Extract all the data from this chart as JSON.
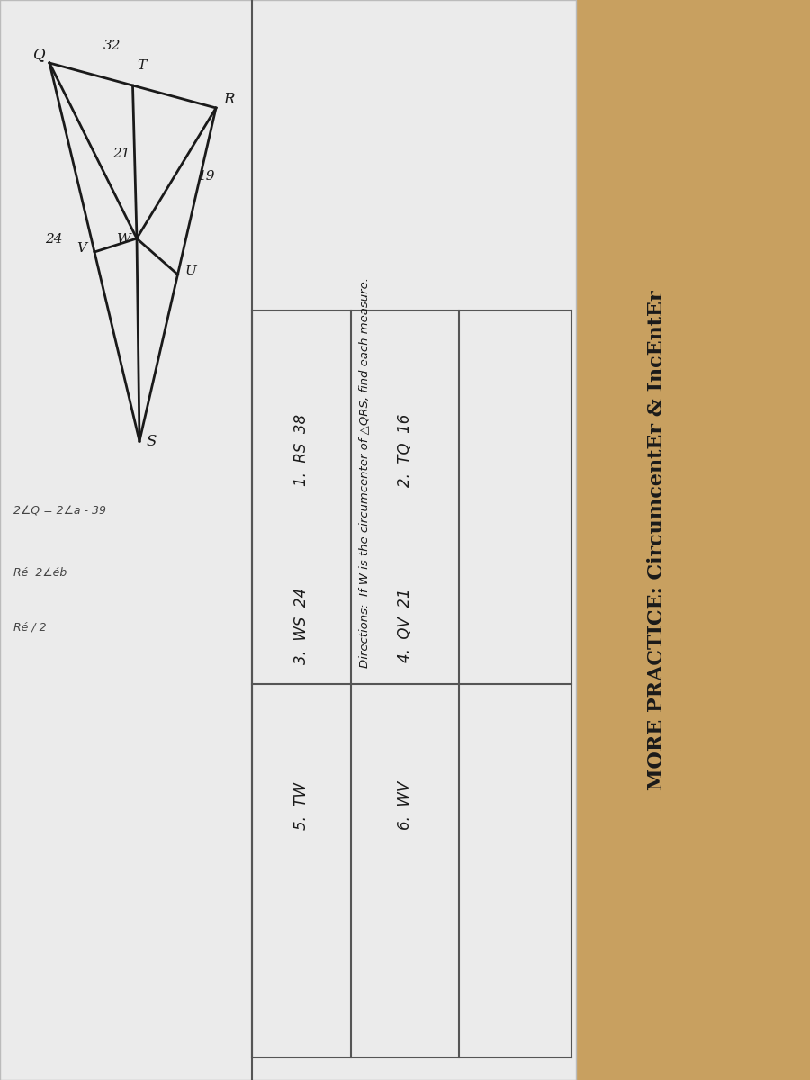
{
  "bg_color": "#c8a060",
  "paper_color": "#ebebeb",
  "paper_color2": "#f5f3ef",
  "title": "MORE PRACTICE: CircumcentEr & IncEntEr",
  "directions": "Directions:  If W is the circumcenter of △QRS, find each measure.",
  "problems_col1": [
    "1.  RS  38",
    "3.  WS  24",
    "5.  TW"
  ],
  "problems_col2": [
    "2.  TQ  16",
    "4.  QV  21",
    "6.  WV"
  ],
  "note1": "2∠Q = 2∠a - 39",
  "note2": "Ré  2∠éb",
  "note3": "Ré / 2",
  "tri_color": "#1a1a1a",
  "text_color": "#1a1a1a",
  "line_color": "#555555",
  "label_32": "32",
  "label_19": "19",
  "label_24": "24",
  "label_21": "21",
  "label_T": "T",
  "label_Q": "Q",
  "label_R": "R",
  "label_S": "S",
  "label_U": "U",
  "label_V": "V",
  "label_W": "W"
}
